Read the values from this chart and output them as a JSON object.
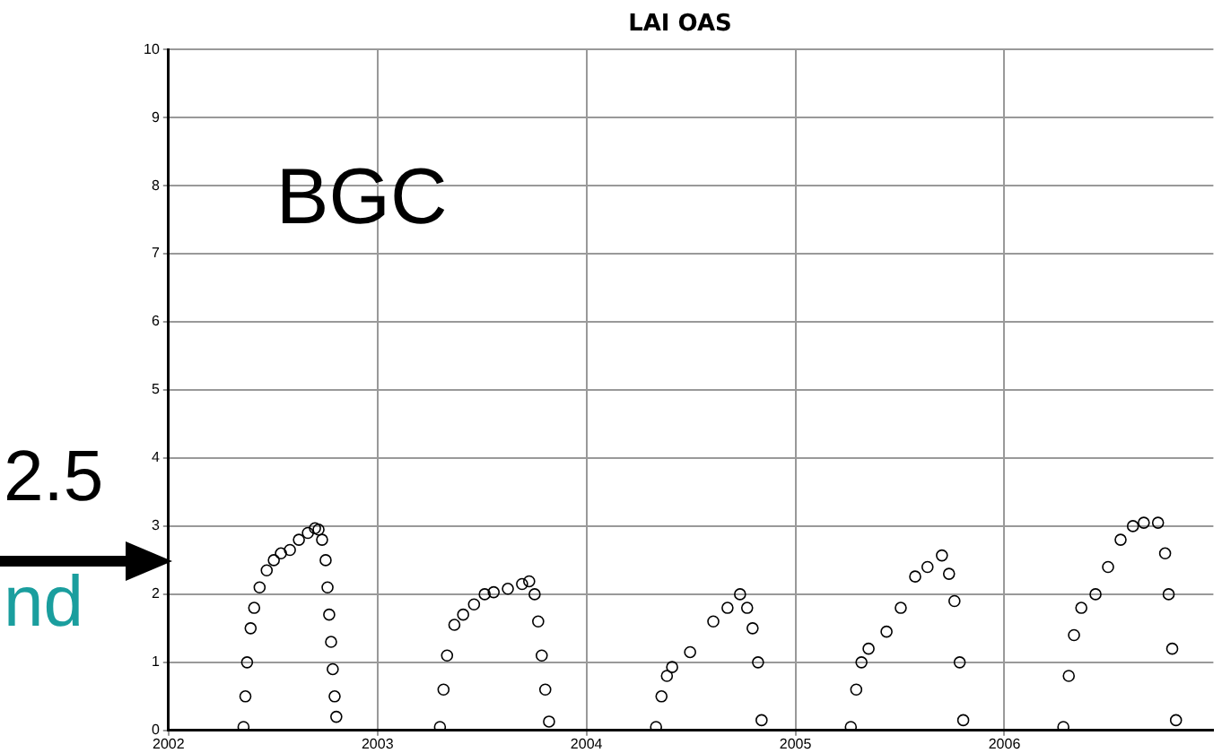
{
  "chart_data": {
    "type": "scatter",
    "title": "LAI OAS",
    "annotations": [
      "BGC",
      "2.5",
      "nd"
    ],
    "x": [
      2002.359,
      2002.368,
      2002.376,
      2002.393,
      2002.41,
      2002.436,
      2002.47,
      2002.504,
      2002.538,
      2002.581,
      2002.624,
      2002.667,
      2002.701,
      2002.718,
      2002.735,
      2002.752,
      2002.761,
      2002.769,
      2002.778,
      2002.786,
      2002.795,
      2002.803,
      2003.299,
      2003.316,
      2003.333,
      2003.368,
      2003.41,
      2003.462,
      2003.513,
      2003.556,
      2003.624,
      2003.692,
      2003.726,
      2003.752,
      2003.769,
      2003.786,
      2003.803,
      2003.821,
      2004.333,
      2004.359,
      2004.385,
      2004.41,
      2004.496,
      2004.607,
      2004.675,
      2004.735,
      2004.769,
      2004.795,
      2004.821,
      2004.838,
      2005.265,
      2005.291,
      2005.316,
      2005.35,
      2005.436,
      2005.504,
      2005.573,
      2005.632,
      2005.701,
      2005.735,
      2005.761,
      2005.786,
      2005.803,
      2006.282,
      2006.308,
      2006.333,
      2006.368,
      2006.436,
      2006.496,
      2006.556,
      2006.615,
      2006.667,
      2006.735,
      2006.769,
      2006.786,
      2006.803,
      2006.821
    ],
    "series": [
      {
        "color": "#000000",
        "values": [
          0.05,
          0.5,
          1.0,
          1.5,
          1.8,
          2.1,
          2.35,
          2.5,
          2.6,
          2.65,
          2.8,
          2.9,
          2.97,
          2.95,
          2.8,
          2.5,
          2.1,
          1.7,
          1.3,
          0.9,
          0.5,
          0.2,
          0.05,
          0.6,
          1.1,
          1.55,
          1.7,
          1.85,
          2.0,
          2.03,
          2.08,
          2.15,
          2.19,
          2.0,
          1.6,
          1.1,
          0.6,
          0.13,
          0.05,
          0.5,
          0.8,
          0.93,
          1.15,
          1.6,
          1.8,
          2.0,
          1.8,
          1.5,
          1.0,
          0.15,
          0.05,
          0.6,
          1.0,
          1.2,
          1.45,
          1.8,
          2.26,
          2.4,
          2.57,
          2.3,
          1.9,
          1.0,
          0.15,
          0.05,
          0.8,
          1.4,
          1.8,
          2.0,
          2.4,
          2.8,
          3.0,
          3.05,
          3.05,
          2.6,
          2.0,
          1.2,
          0.15
        ]
      }
    ],
    "xlim": [
      2002,
      2007
    ],
    "xticks": [
      2002,
      2003,
      2004,
      2005,
      2006
    ],
    "ylim": [
      0,
      10
    ],
    "yticks": [
      0,
      1,
      2,
      3,
      4,
      5,
      6,
      7,
      8,
      9,
      10
    ],
    "grid": true,
    "marker": "circle",
    "legend": false
  }
}
